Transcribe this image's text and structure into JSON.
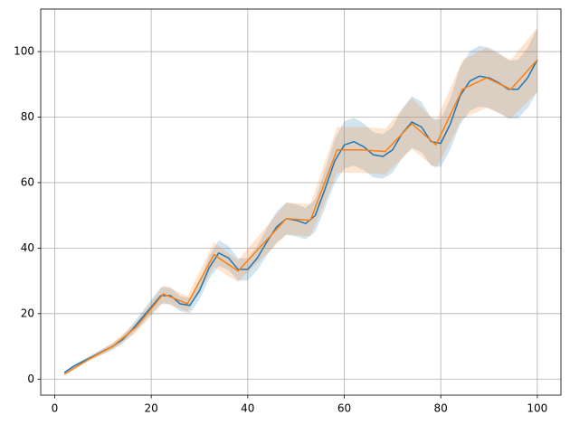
{
  "chart_data": {
    "type": "line",
    "xlim": [
      -2.9,
      104.9
    ],
    "ylim": [
      -4.9,
      113
    ],
    "xticks": [
      0,
      20,
      40,
      60,
      80,
      100
    ],
    "yticks": [
      0,
      20,
      40,
      60,
      80,
      100
    ],
    "grid": true,
    "band_opacity": 0.2,
    "series": [
      {
        "color": "#1f77b4",
        "x": [
          2,
          4,
          6,
          8,
          10,
          12,
          14,
          16,
          18,
          20,
          22,
          24,
          26,
          28,
          30,
          32,
          34,
          36,
          38,
          40,
          42,
          44,
          46,
          48,
          50,
          52,
          54,
          56,
          58,
          60,
          62,
          64,
          66,
          68,
          70,
          72,
          74,
          76,
          78,
          80,
          82,
          84,
          86,
          88,
          90,
          92,
          94,
          96,
          98,
          100
        ],
        "values": [
          2,
          4,
          5.5,
          7,
          8.5,
          10,
          12,
          15,
          18.5,
          22,
          25.5,
          25.5,
          23,
          22.5,
          27,
          34,
          38.5,
          37,
          33.5,
          33.5,
          37,
          42,
          46.5,
          49,
          48.5,
          47.5,
          50,
          58,
          66.5,
          71.5,
          72.5,
          71,
          68.5,
          68,
          70,
          75,
          78.5,
          77,
          72.5,
          72,
          78,
          86.5,
          91,
          92.5,
          92,
          90.5,
          88.5,
          88.5,
          92,
          97.5
        ],
        "errors": [
          0.2,
          0.4,
          0.6,
          0.7,
          0.9,
          1,
          1.2,
          1.5,
          1.9,
          2.2,
          2.6,
          2.6,
          2.3,
          2.3,
          2.7,
          3.4,
          3.9,
          3.7,
          3.4,
          3.4,
          3.7,
          4.2,
          4.7,
          4.9,
          4.9,
          4.8,
          5,
          5.8,
          6.7,
          7.2,
          7.3,
          7.1,
          6.9,
          6.8,
          7,
          7.5,
          7.9,
          7.7,
          7.3,
          7.2,
          7.8,
          8.7,
          9.1,
          9.3,
          9.2,
          9.1,
          8.9,
          8.9,
          9.2,
          9.8
        ]
      },
      {
        "color": "#ff7f0e",
        "x": [
          2,
          7,
          12,
          17,
          22.5,
          27.5,
          33,
          38,
          43,
          48,
          53,
          58.5,
          63.5,
          68.5,
          74,
          79,
          84.5,
          89.5,
          94.5,
          100
        ],
        "values": [
          1.5,
          6,
          10,
          16,
          26,
          23,
          38,
          33,
          41,
          49,
          48.5,
          70,
          70,
          69.5,
          78,
          71.5,
          88.5,
          92,
          88.5,
          97.5
        ],
        "errors": [
          0.2,
          0.6,
          1,
          1.6,
          2.6,
          2.3,
          3.8,
          3.3,
          4.1,
          4.9,
          4.9,
          7,
          7,
          7,
          7.8,
          7.2,
          8.9,
          9.2,
          8.9,
          9.8
        ]
      }
    ]
  }
}
